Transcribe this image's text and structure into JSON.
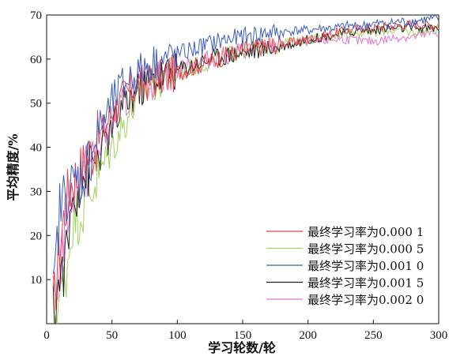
{
  "chart_data": {
    "type": "line",
    "xlabel": "学习轮数/轮",
    "ylabel": "平均精度/%",
    "xlim": [
      0,
      300
    ],
    "ylim": [
      0,
      70
    ],
    "xticks": [
      0,
      50,
      100,
      150,
      200,
      250,
      300
    ],
    "yticks": [
      10,
      20,
      30,
      40,
      50,
      60,
      70
    ],
    "ytick_labels": [
      "10",
      "20",
      "30",
      "40",
      "50",
      "60",
      "70"
    ],
    "xtick_labels": [
      "0",
      "50",
      "100",
      "150",
      "200",
      "250",
      "300"
    ],
    "grid": false,
    "legend_position": "bottom-right",
    "x": [
      5,
      10,
      15,
      20,
      25,
      30,
      40,
      50,
      60,
      70,
      80,
      90,
      100,
      110,
      120,
      130,
      140,
      150,
      160,
      170,
      180,
      190,
      200,
      210,
      220,
      230,
      240,
      250,
      260,
      270,
      280,
      290,
      300
    ],
    "series": [
      {
        "name": "最终学习率为0.000 1",
        "color": "#e8424a",
        "values": [
          3,
          18,
          28,
          33,
          34,
          37,
          42,
          48,
          52,
          54,
          55,
          56,
          57,
          58,
          59,
          60,
          61,
          62,
          62.5,
          63,
          63.5,
          64,
          64.5,
          65,
          66,
          66.5,
          67,
          67,
          67.5,
          67.5,
          68,
          68,
          67.5
        ]
      },
      {
        "name": "最终学习率为0.000 5",
        "color": "#9fd45a",
        "values": [
          1,
          6,
          12,
          24,
          25,
          28,
          34,
          40,
          46,
          51,
          54,
          56,
          57,
          58,
          59,
          60,
          61,
          62,
          62.5,
          63,
          63.5,
          64,
          64.5,
          65,
          65.5,
          66,
          66,
          66,
          66.5,
          66.5,
          66,
          66.5,
          67
        ]
      },
      {
        "name": "最终学习率为0.001 0",
        "color": "#3a5fb8",
        "values": [
          5,
          26,
          30,
          31,
          33,
          35,
          44,
          50,
          55,
          57,
          59,
          60,
          61,
          62,
          63,
          64,
          64.5,
          65,
          65.5,
          66,
          66,
          66.5,
          66.5,
          67,
          67,
          67.5,
          67.5,
          68,
          68,
          68.5,
          68.5,
          69,
          69
        ]
      },
      {
        "name": "最终学习率为0.001 5",
        "color": "#222222",
        "values": [
          2,
          10,
          15,
          28,
          32,
          34,
          38,
          44,
          50,
          53,
          55,
          56.5,
          57.5,
          58.5,
          59.5,
          60.5,
          61,
          61.5,
          62,
          62.5,
          63,
          63.5,
          64.5,
          65,
          65.5,
          66,
          66.5,
          66.5,
          67,
          67,
          67,
          67,
          67
        ]
      },
      {
        "name": "最终学习率为0.002 0",
        "color": "#e277c9",
        "values": [
          4,
          12,
          24,
          30,
          32,
          34,
          40,
          46,
          50,
          53,
          55,
          56.5,
          57.5,
          58.5,
          59.5,
          60.5,
          61,
          62,
          62.5,
          63,
          63,
          63.5,
          64,
          64,
          64.5,
          64.5,
          64,
          64,
          64.5,
          65,
          65,
          65.5,
          66
        ]
      }
    ]
  }
}
